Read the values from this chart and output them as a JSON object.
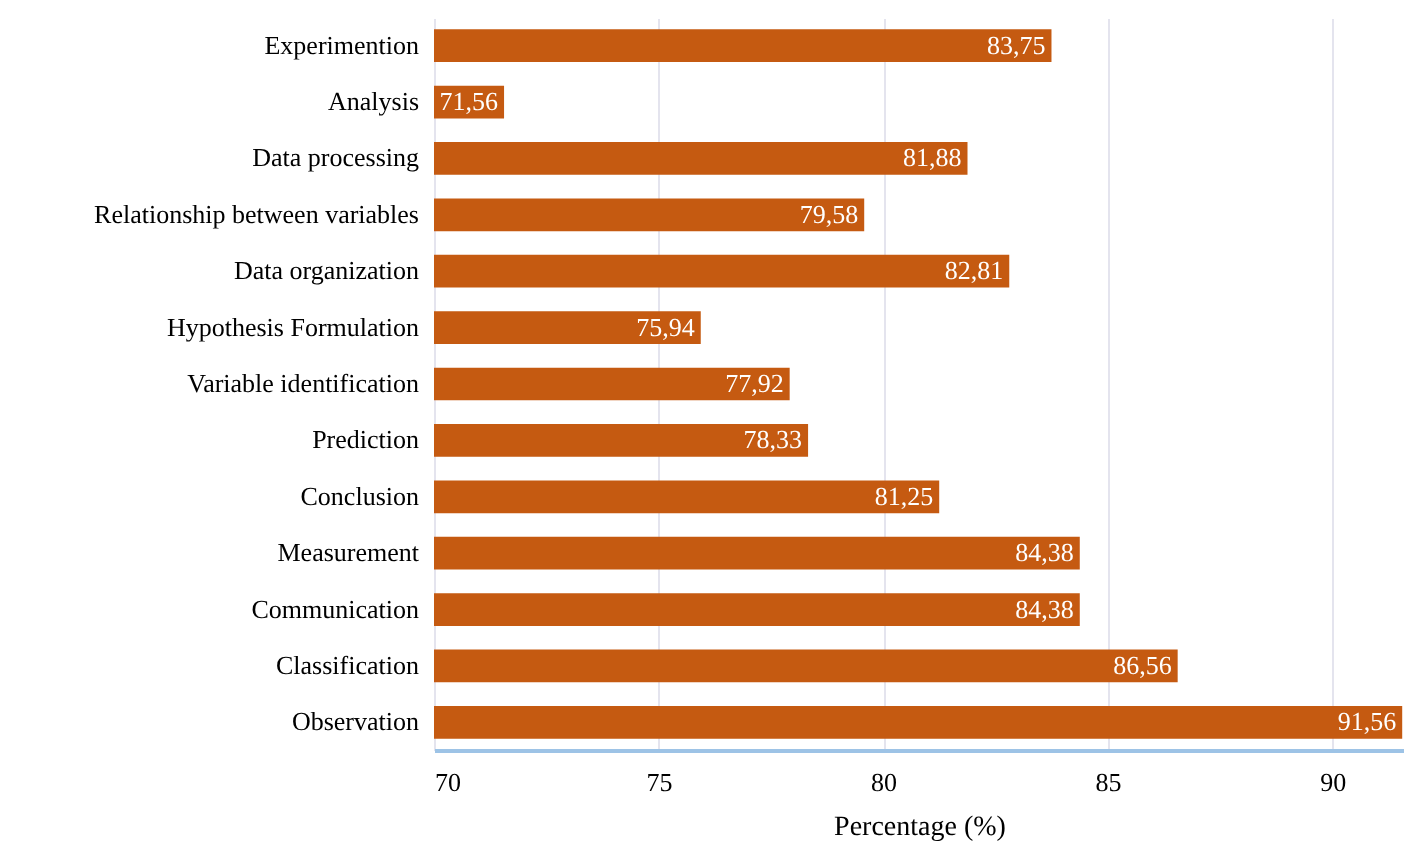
{
  "chart_data": {
    "type": "bar",
    "orientation": "horizontal",
    "xlabel": "Percentage (%)",
    "categories": [
      "Experimention",
      "Analysis",
      "Data processing",
      "Relationship between variables",
      "Data organization",
      "Hypothesis Formulation",
      "Variable identification",
      "Prediction",
      "Conclusion",
      "Measurement",
      "Communication",
      "Classification",
      "Observation"
    ],
    "values": [
      83.75,
      71.56,
      81.88,
      79.58,
      82.81,
      75.94,
      77.92,
      78.33,
      81.25,
      84.38,
      84.38,
      86.56,
      91.56
    ],
    "value_labels": [
      "83,75",
      "71,56",
      "81,88",
      "79,58",
      "82,81",
      "75,94",
      "77,92",
      "78,33",
      "81,25",
      "84,38",
      "84,38",
      "86,56",
      "91,56"
    ],
    "color": "#c55a11",
    "xlim": [
      70,
      91.6
    ],
    "xticks": [
      70,
      75,
      80,
      85,
      90
    ],
    "grid": "x"
  }
}
